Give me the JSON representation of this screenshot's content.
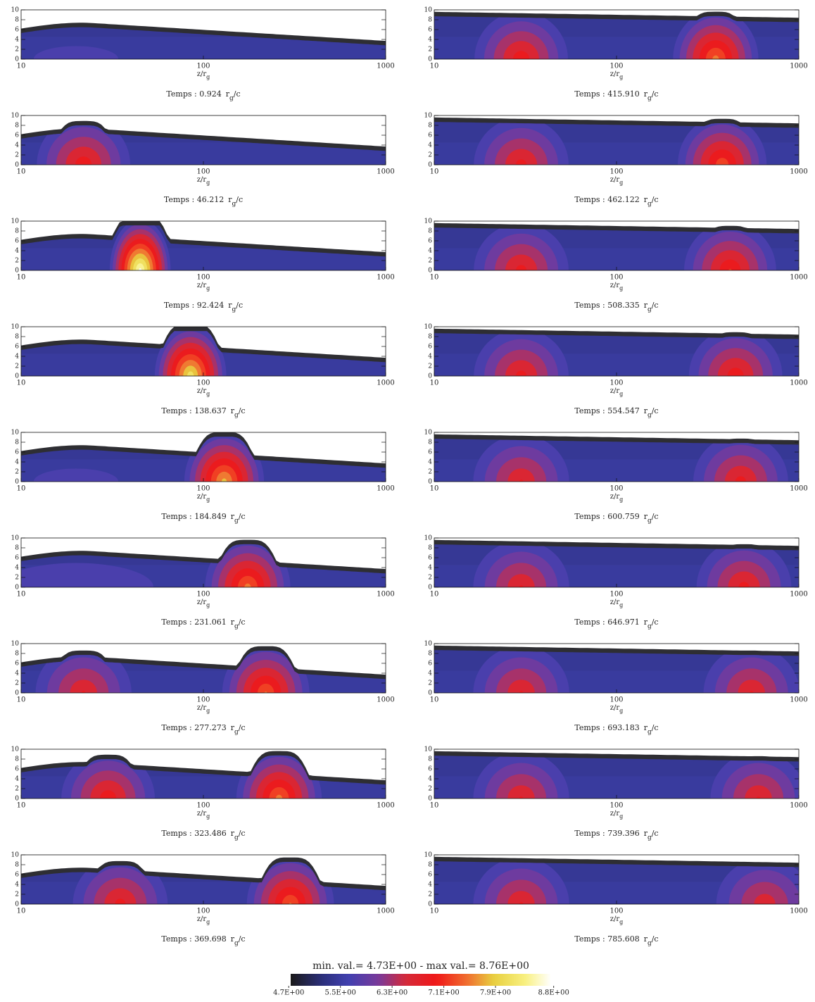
{
  "axes": {
    "xlabel": "z/r",
    "xlabel_sub": "g",
    "xscale": "log",
    "xlim": [
      10,
      1000
    ],
    "xticks": [
      10,
      100,
      1000
    ],
    "ylim": [
      0,
      10
    ],
    "yticks": [
      0,
      2,
      4,
      6,
      8,
      10
    ]
  },
  "time_unit": {
    "base": "r",
    "sub": "g",
    "rest": "/c"
  },
  "chart_data": [
    {
      "type": "contour",
      "title": "Temps : 0.924",
      "x": [
        20
      ],
      "values": [
        5.6
      ]
    },
    {
      "type": "contour",
      "title": "Temps : 46.212",
      "x": [
        22
      ],
      "values": [
        7.0
      ]
    },
    {
      "type": "contour",
      "title": "Temps : 92.424",
      "x": [
        45
      ],
      "values": [
        8.7
      ]
    },
    {
      "type": "contour",
      "title": "Temps : 138.637",
      "x": [
        85
      ],
      "values": [
        8.2
      ]
    },
    {
      "type": "contour",
      "title": "Temps : 184.849",
      "x": [
        20,
        130
      ],
      "values": [
        5.6,
        7.8
      ]
    },
    {
      "type": "contour",
      "title": "Temps : 231.061",
      "x": [
        20,
        175
      ],
      "values": [
        5.7,
        7.5
      ]
    },
    {
      "type": "contour",
      "title": "Temps : 277.273",
      "x": [
        22,
        220
      ],
      "values": [
        6.8,
        7.4
      ]
    },
    {
      "type": "contour",
      "title": "Temps : 323.486",
      "x": [
        30,
        260
      ],
      "values": [
        7.0,
        7.5
      ]
    },
    {
      "type": "contour",
      "title": "Temps : 369.698",
      "x": [
        35,
        300
      ],
      "values": [
        6.9,
        7.4
      ]
    },
    {
      "type": "contour",
      "title": "Temps : 415.910",
      "x": [
        30,
        350
      ],
      "values": [
        7.0,
        7.5
      ]
    },
    {
      "type": "contour",
      "title": "Temps : 462.122",
      "x": [
        30,
        380
      ],
      "values": [
        6.9,
        7.3
      ]
    },
    {
      "type": "contour",
      "title": "Temps : 508.335",
      "x": [
        30,
        420
      ],
      "values": [
        6.9,
        7.1
      ]
    },
    {
      "type": "contour",
      "title": "Temps : 554.547",
      "x": [
        30,
        450
      ],
      "values": [
        6.9,
        7.0
      ]
    },
    {
      "type": "contour",
      "title": "Temps : 600.759",
      "x": [
        30,
        480
      ],
      "values": [
        6.8,
        6.9
      ]
    },
    {
      "type": "contour",
      "title": "Temps : 646.971",
      "x": [
        30,
        500
      ],
      "values": [
        6.8,
        6.9
      ]
    },
    {
      "type": "contour",
      "title": "Temps : 693.183",
      "x": [
        30,
        550
      ],
      "values": [
        6.8,
        6.8
      ]
    },
    {
      "type": "contour",
      "title": "Temps : 739.396",
      "x": [
        30,
        600
      ],
      "values": [
        6.8,
        6.8
      ]
    },
    {
      "type": "contour",
      "title": "Temps : 785.608",
      "x": [
        30,
        650
      ],
      "values": [
        6.8,
        6.7
      ]
    }
  ],
  "colorbar": {
    "title": "min. val.= 4.73E+00 - max val.= 8.76E+00",
    "lim": [
      4.73,
      8.76
    ],
    "ticks": [
      {
        "value": 4.7,
        "label": "4.7E+00"
      },
      {
        "value": 5.5,
        "label": "5.5E+00"
      },
      {
        "value": 6.3,
        "label": "6.3E+00"
      },
      {
        "value": 7.1,
        "label": "7.1E+00"
      },
      {
        "value": 7.9,
        "label": "7.9E+00"
      },
      {
        "value": 8.8,
        "label": "8.8E+00"
      }
    ]
  }
}
